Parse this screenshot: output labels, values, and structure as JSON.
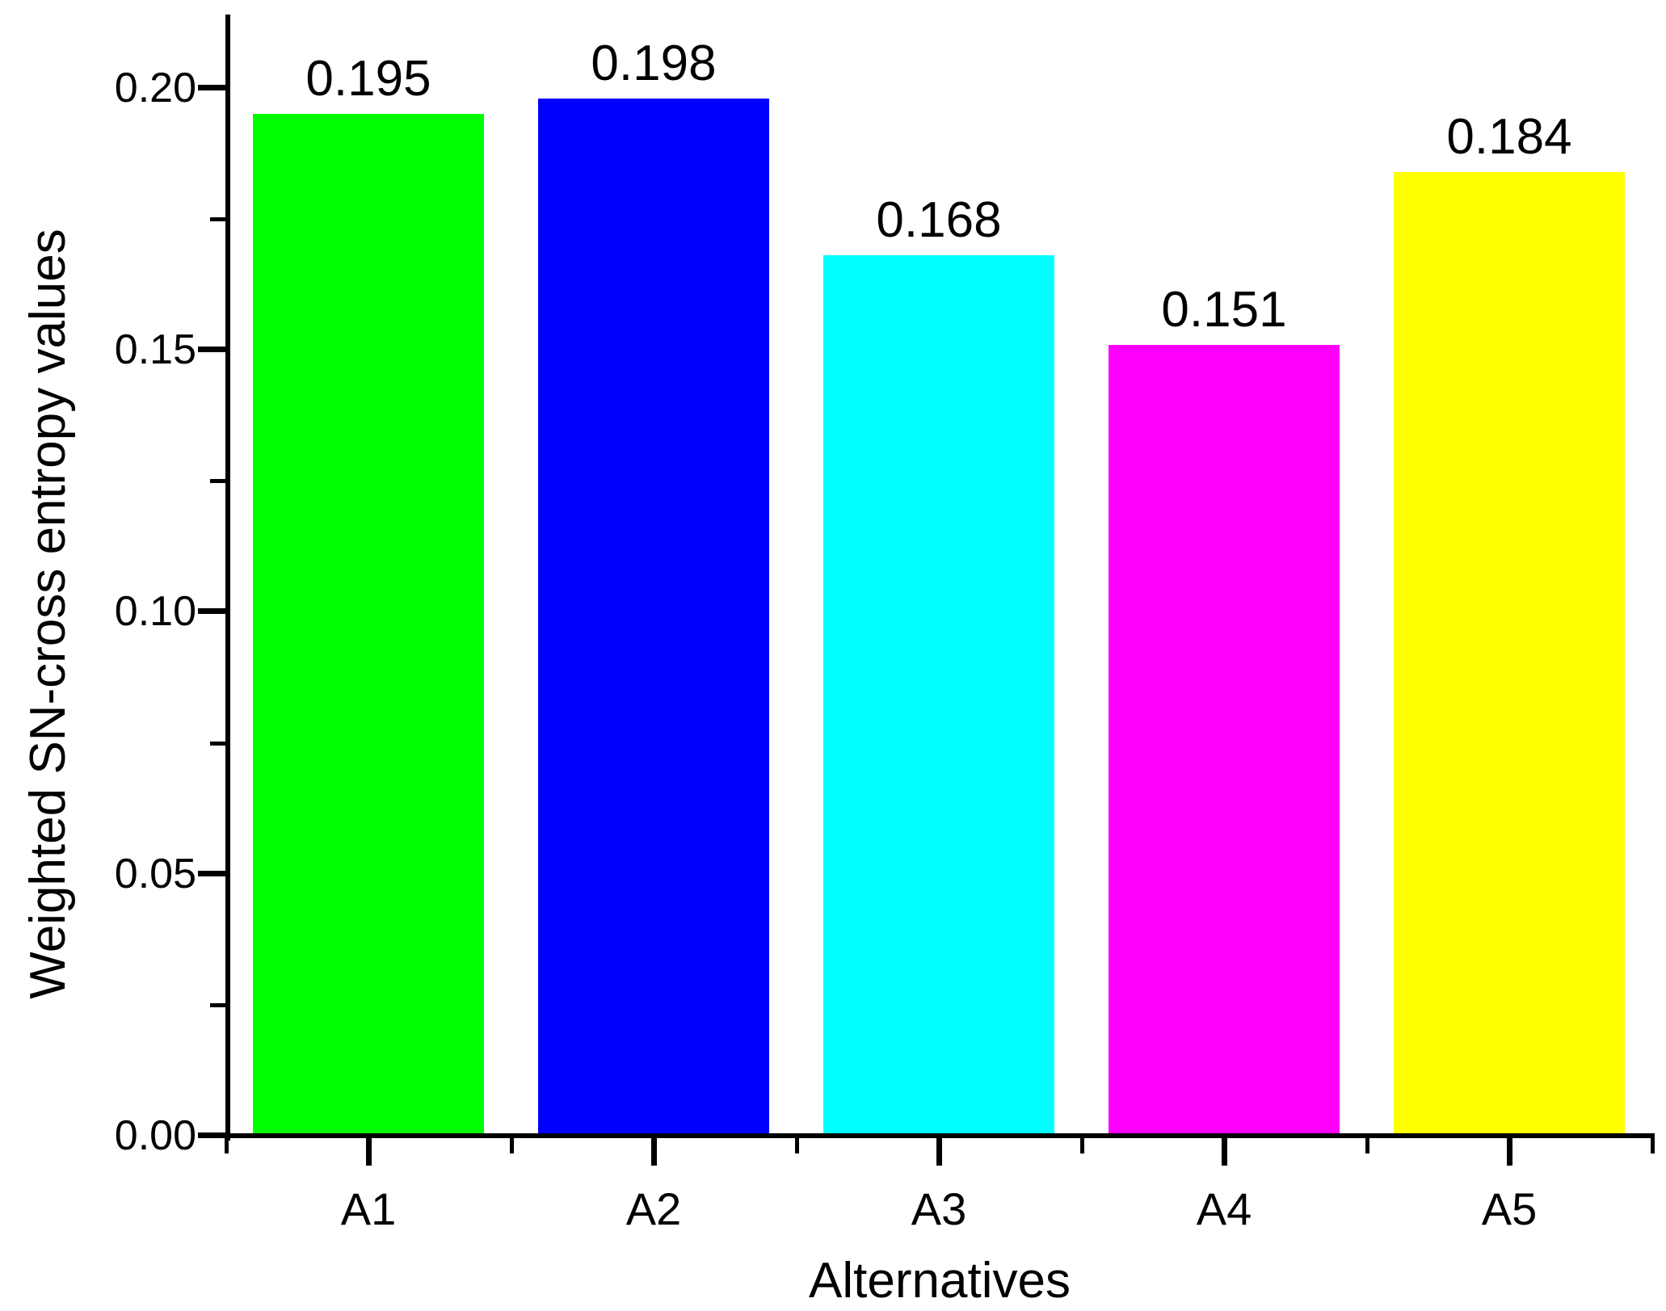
{
  "chart_data": {
    "type": "bar",
    "title": "",
    "categories": [
      "A1",
      "A2",
      "A3",
      "A4",
      "A5"
    ],
    "values": [
      0.195,
      0.198,
      0.168,
      0.151,
      0.184
    ],
    "bar_value_labels": [
      "0.195",
      "0.198",
      "0.168",
      "0.151",
      "0.184"
    ],
    "bar_colors": [
      "#00FF00",
      "#0000FF",
      "#00FFFF",
      "#FF00FF",
      "#FFFF00"
    ],
    "xlabel": "Alternatives",
    "ylabel": "Weighted SN-cross entropy values",
    "ylim": [
      0,
      0.214
    ],
    "yticks": [
      {
        "value": 0.0,
        "label": "0.00"
      },
      {
        "value": 0.05,
        "label": "0.05"
      },
      {
        "value": 0.1,
        "label": "0.10"
      },
      {
        "value": 0.15,
        "label": "0.15"
      },
      {
        "value": 0.2,
        "label": "0.20"
      }
    ],
    "y_minor_ticks": [
      0.025,
      0.075,
      0.125,
      0.175
    ],
    "x_minor_tick_positions": [
      0.5,
      1.5,
      2.5,
      3.5,
      4.5,
      5.5
    ],
    "grid": false,
    "legend_position": "none",
    "axis_color": "#000000",
    "text_color": "#000000",
    "background_color": "#FFFFFF"
  }
}
